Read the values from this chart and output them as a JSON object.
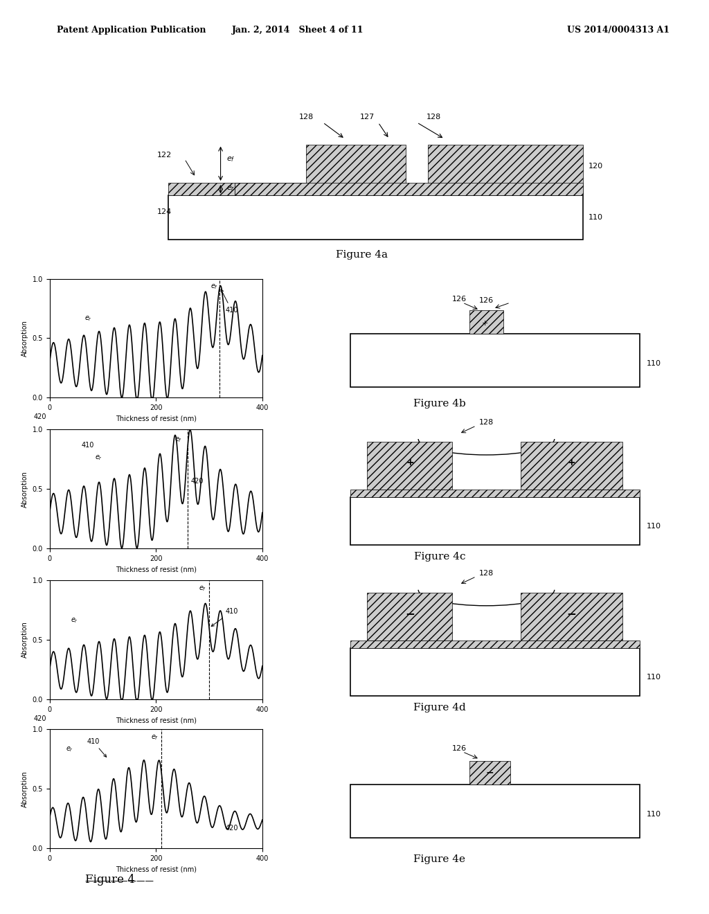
{
  "bg_color": "#ffffff",
  "text_color": "#000000",
  "header_left": "Patent Application Publication",
  "header_center": "Jan. 2, 2014   Sheet 4 of 11",
  "header_right": "US 2014/0004313 A1",
  "figure_label": "Figure 4",
  "fig4a_label": "Figure 4a",
  "fig4b_label": "Figure 4b",
  "fig4c_label": "Figure 4c",
  "fig4d_label": "Figure 4d",
  "fig4e_label": "Figure 4e"
}
